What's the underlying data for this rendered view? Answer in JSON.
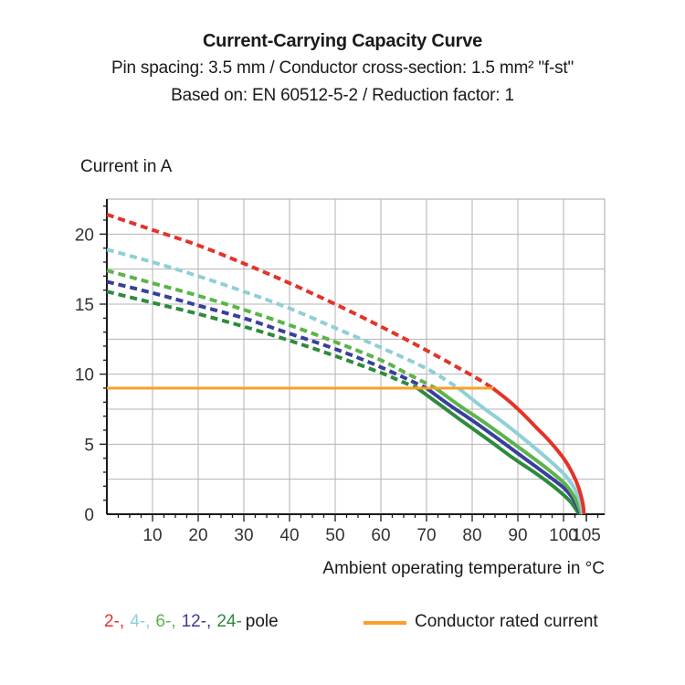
{
  "header": {
    "title": "Current-Carrying Capacity Curve",
    "subtitle_spec": "Pin spacing: 3.5 mm / Conductor cross-section: 1.5 mm² \"f-st\"",
    "subtitle_basis": "Based on: EN 60512-5-2 / Reduction factor: 1"
  },
  "legend": {
    "pole_items": [
      {
        "label": "2-,",
        "color": "#e5332a"
      },
      {
        "label": "4-,",
        "color": "#8ecfd8"
      },
      {
        "label": "6-,",
        "color": "#5bb44b"
      },
      {
        "label": "12-,",
        "color": "#3a3e9c"
      },
      {
        "label": "24-",
        "color": "#2e8b3d"
      }
    ],
    "pole_suffix": "pole",
    "rated_label": "Conductor rated current",
    "rated_line_color": "#f8a029"
  },
  "colors": {
    "grid": "#b3b3b3",
    "axis": "#1a1a1a",
    "tick_text": "#333333"
  },
  "chart_data": {
    "type": "line",
    "title": "Current-Carrying Capacity Curve",
    "xlabel": "Ambient operating temperature in °C",
    "ylabel": "Current in A",
    "xlim": [
      0,
      109
    ],
    "ylim": [
      0,
      22.5
    ],
    "x_major_ticks": [
      10,
      20,
      30,
      40,
      50,
      60,
      70,
      80,
      90,
      100,
      105
    ],
    "x_minor_step": 2.5,
    "y_major_ticks": [
      0,
      5,
      10,
      15,
      20
    ],
    "y_minor_step": 1,
    "grid": {
      "x_step": 10,
      "x_last_line": 100,
      "y_step": 2.5,
      "on": true,
      "border": true
    },
    "rated_current_a": 9,
    "series": [
      {
        "name": "2-pole above rated current",
        "pole": 2,
        "style": "dashed",
        "color": "#e5332a",
        "points": [
          [
            0,
            21.4
          ],
          [
            10,
            20.3
          ],
          [
            20,
            19.2
          ],
          [
            30,
            17.9
          ],
          [
            40,
            16.5
          ],
          [
            50,
            15.0
          ],
          [
            60,
            13.4
          ],
          [
            70,
            11.7
          ],
          [
            80,
            9.9
          ],
          [
            84.5,
            9.0
          ]
        ]
      },
      {
        "name": "4-pole above rated current",
        "pole": 4,
        "style": "dashed",
        "color": "#8ecfd8",
        "points": [
          [
            0,
            18.9
          ],
          [
            10,
            18.0
          ],
          [
            20,
            17.0
          ],
          [
            30,
            15.9
          ],
          [
            40,
            14.7
          ],
          [
            50,
            13.3
          ],
          [
            60,
            11.9
          ],
          [
            70,
            10.4
          ],
          [
            77,
            9.0
          ]
        ]
      },
      {
        "name": "6-pole above rated current",
        "pole": 6,
        "style": "dashed",
        "color": "#5bb44b",
        "points": [
          [
            0,
            17.4
          ],
          [
            10,
            16.5
          ],
          [
            20,
            15.6
          ],
          [
            30,
            14.6
          ],
          [
            40,
            13.5
          ],
          [
            50,
            12.3
          ],
          [
            60,
            11.0
          ],
          [
            66,
            10.0
          ],
          [
            72,
            9.0
          ]
        ]
      },
      {
        "name": "12-pole above rated current",
        "pole": 12,
        "style": "dashed",
        "color": "#3a3e9c",
        "points": [
          [
            0,
            16.6
          ],
          [
            10,
            15.8
          ],
          [
            20,
            14.9
          ],
          [
            30,
            14.0
          ],
          [
            40,
            12.9
          ],
          [
            50,
            11.8
          ],
          [
            60,
            10.5
          ],
          [
            70,
            9.0
          ]
        ]
      },
      {
        "name": "24-pole above rated current",
        "pole": 24,
        "style": "dashed",
        "color": "#2e8b3d",
        "points": [
          [
            0,
            15.9
          ],
          [
            10,
            15.1
          ],
          [
            20,
            14.3
          ],
          [
            30,
            13.4
          ],
          [
            40,
            12.4
          ],
          [
            50,
            11.3
          ],
          [
            60,
            10.1
          ],
          [
            64,
            9.55
          ],
          [
            68,
            9.0
          ]
        ]
      },
      {
        "name": "24-pole derating",
        "pole": 24,
        "style": "solid",
        "color": "#2e8b3d",
        "points": [
          [
            68,
            9.0
          ],
          [
            73,
            7.8
          ],
          [
            78,
            6.6
          ],
          [
            84,
            5.2
          ],
          [
            89,
            4.0
          ],
          [
            94,
            2.9
          ],
          [
            98.5,
            1.8
          ],
          [
            101.5,
            0.9
          ],
          [
            103.4,
            0.0
          ]
        ]
      },
      {
        "name": "12-pole derating",
        "pole": 12,
        "style": "solid",
        "color": "#3a3e9c",
        "points": [
          [
            70,
            9.0
          ],
          [
            75,
            7.8
          ],
          [
            80,
            6.7
          ],
          [
            86,
            5.3
          ],
          [
            91,
            4.1
          ],
          [
            96,
            2.9
          ],
          [
            100,
            1.9
          ],
          [
            102.3,
            1.0
          ],
          [
            103.7,
            0.0
          ]
        ]
      },
      {
        "name": "6-pole derating",
        "pole": 6,
        "style": "solid",
        "color": "#5bb44b",
        "points": [
          [
            72,
            9.0
          ],
          [
            77,
            7.8
          ],
          [
            82,
            6.7
          ],
          [
            88,
            5.3
          ],
          [
            93,
            4.1
          ],
          [
            97,
            3.1
          ],
          [
            100.5,
            2.1
          ],
          [
            102.6,
            1.1
          ],
          [
            103.9,
            0.0
          ]
        ]
      },
      {
        "name": "4-pole derating",
        "pole": 4,
        "style": "solid",
        "color": "#8ecfd8",
        "points": [
          [
            77,
            9.0
          ],
          [
            82,
            7.7
          ],
          [
            87,
            6.5
          ],
          [
            92,
            5.2
          ],
          [
            96,
            4.1
          ],
          [
            100,
            2.9
          ],
          [
            102.3,
            1.9
          ],
          [
            103.6,
            0.9
          ],
          [
            104.2,
            0.0
          ]
        ]
      },
      {
        "name": "2-pole derating",
        "pole": 2,
        "style": "solid",
        "color": "#e5332a",
        "points": [
          [
            84.5,
            9.0
          ],
          [
            88,
            8.1
          ],
          [
            91,
            7.2
          ],
          [
            94,
            6.2
          ],
          [
            97,
            5.2
          ],
          [
            100,
            4.0
          ],
          [
            102,
            2.9
          ],
          [
            103.3,
            1.9
          ],
          [
            104.2,
            0.8
          ],
          [
            104.5,
            0.0
          ]
        ]
      },
      {
        "name": "Conductor rated current",
        "style": "solid",
        "color": "#f8a029",
        "width": 3,
        "points": [
          [
            0,
            9.0
          ],
          [
            84.5,
            9.0
          ]
        ]
      }
    ]
  }
}
